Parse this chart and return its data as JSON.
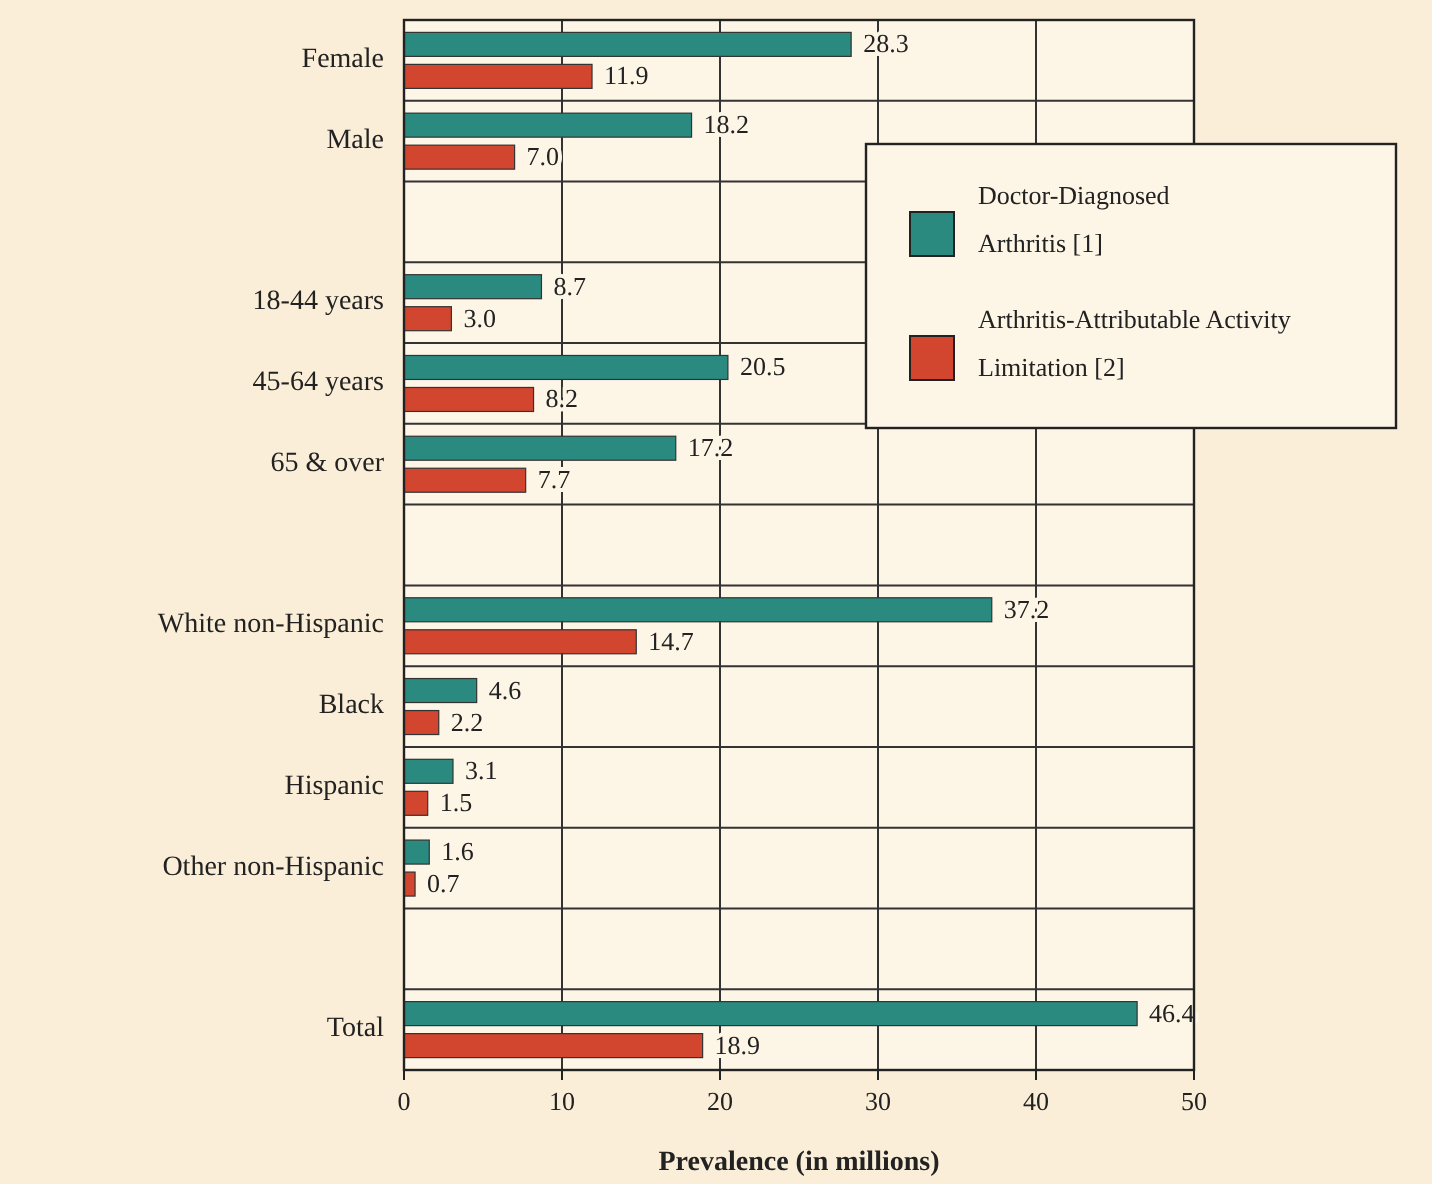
{
  "chart_data": {
    "type": "bar",
    "orientation": "horizontal",
    "xlabel": "Prevalence (in millions)",
    "categories": [
      "Female",
      "Male",
      null,
      "18-44 years",
      "45-64 years",
      "65 & over",
      null,
      "White non-Hispanic",
      "Black",
      "Hispanic",
      "Other non-Hispanic",
      null,
      "Total"
    ],
    "series": [
      {
        "name": "Doctor-Diagnosed Arthritis [1]",
        "color": "#2a8a80",
        "values": [
          28.3,
          18.2,
          null,
          8.7,
          20.5,
          17.2,
          null,
          37.2,
          4.6,
          3.1,
          1.6,
          null,
          46.4
        ],
        "value_labels": [
          "28.3",
          "18.2",
          null,
          "8.7",
          "20.5",
          "17.2",
          null,
          "37.2",
          "4.6",
          "3.1",
          "1.6",
          null,
          "46.4"
        ]
      },
      {
        "name": "Arthritis-Attributable Activity Limitation [2]",
        "color": "#d2452e",
        "values": [
          11.9,
          7.0,
          null,
          3.0,
          8.2,
          7.7,
          null,
          14.7,
          2.2,
          1.5,
          0.7,
          null,
          18.9
        ],
        "value_labels": [
          "11.9",
          "7.0",
          null,
          "3.0",
          "8.2",
          "7.7",
          null,
          "14.7",
          "2.2",
          "1.5",
          "0.7",
          null,
          "18.9"
        ]
      }
    ],
    "xlim": [
      0,
      50
    ],
    "xticks": [
      0,
      10,
      20,
      30,
      40,
      50
    ],
    "grid": true,
    "legend": "top right"
  }
}
